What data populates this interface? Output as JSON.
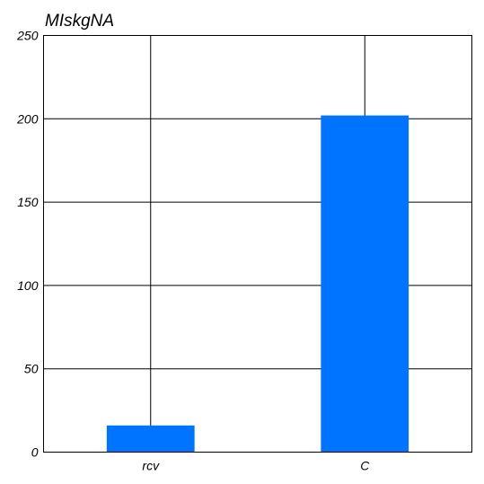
{
  "chart_data": {
    "type": "bar",
    "title": "MIskgNA",
    "xlabel": "",
    "ylabel": "",
    "categories": [
      "rcv",
      "C"
    ],
    "values": [
      16,
      202
    ],
    "ylim": [
      0,
      250
    ],
    "yticks": [
      0,
      50,
      100,
      150,
      200,
      250
    ],
    "grid": true,
    "bar_color": "#0073ff"
  }
}
